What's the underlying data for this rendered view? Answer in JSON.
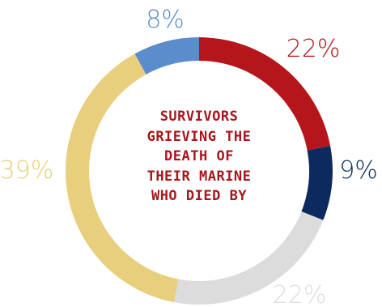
{
  "chart_data": {
    "type": "pie",
    "title_lines": [
      "SURVIVORS",
      "GRIEVING THE",
      "DEATH OF",
      "THEIR MARINE",
      "WHO DIED BY"
    ],
    "slices": [
      {
        "label": "22%",
        "value": 22,
        "color": "#b5161b"
      },
      {
        "label": "9%",
        "value": 9,
        "color": "#0d2a5e"
      },
      {
        "label": "22%",
        "value": 22,
        "color": "#dcdcdc"
      },
      {
        "label": "39%",
        "value": 39,
        "color": "#e8cf7d"
      },
      {
        "label": "8%",
        "value": 8,
        "color": "#5b8ccc"
      }
    ],
    "start_angle_deg": 0,
    "direction": "clockwise",
    "legend": "none",
    "title_color": "#a8161c"
  }
}
